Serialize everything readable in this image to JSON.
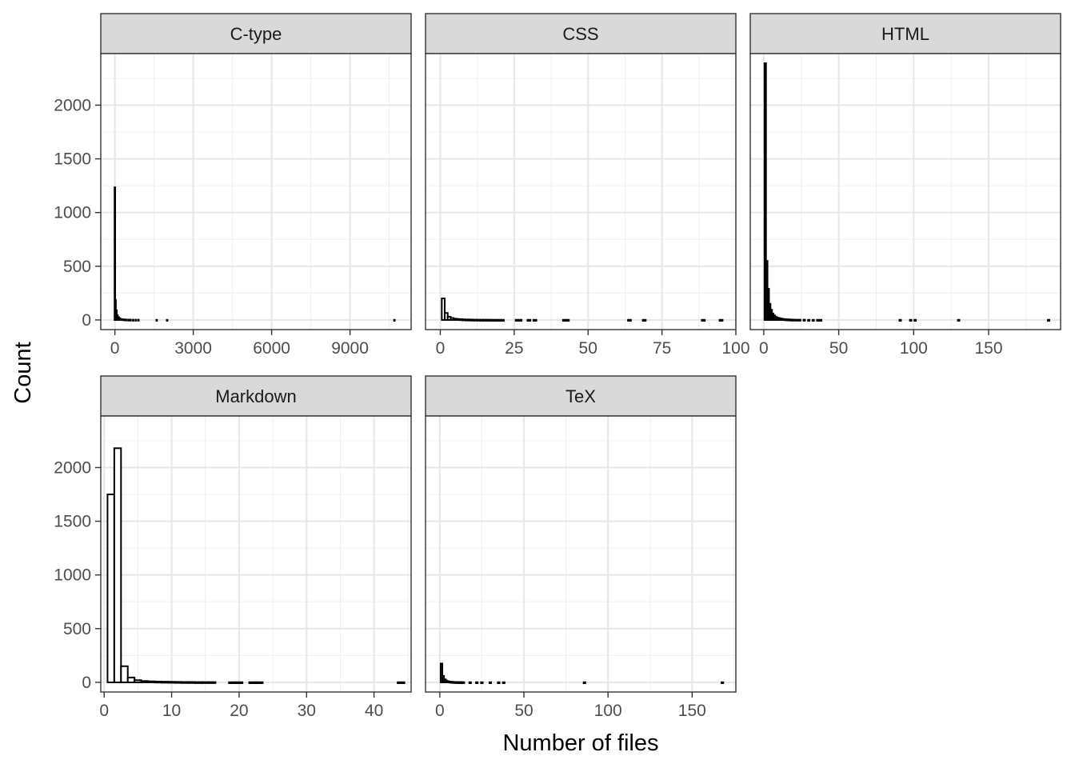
{
  "chart_data": {
    "type": "bar",
    "subtype": "faceted histogram",
    "xlabel": "Number of files",
    "ylabel": "Count",
    "facet_layout": {
      "columns": 3,
      "rows": 2
    },
    "scales": {
      "x": "free",
      "y": "shared"
    },
    "ylim": [
      -90,
      2480
    ],
    "y_ticks": [
      0,
      500,
      1000,
      1500,
      2000
    ],
    "grid": true,
    "legend": "none",
    "bar_fill": "#ffffff",
    "bar_outline": "#000000",
    "strip_fill": "#d9d9d9",
    "facets": [
      {
        "name": "C-type",
        "xlim": [
          -540,
          11340
        ],
        "x_ticks": [
          0,
          3000,
          6000,
          9000
        ],
        "x_tick_labels": [
          "0",
          "3000",
          "6000",
          "9000"
        ],
        "bins": [
          {
            "x": 0,
            "count": 1235
          },
          {
            "x": 25,
            "count": 185
          },
          {
            "x": 60,
            "count": 90
          },
          {
            "x": 100,
            "count": 45
          },
          {
            "x": 150,
            "count": 25
          },
          {
            "x": 200,
            "count": 15
          },
          {
            "x": 270,
            "count": 8
          },
          {
            "x": 350,
            "count": 5
          },
          {
            "x": 430,
            "count": 4
          },
          {
            "x": 520,
            "count": 3
          },
          {
            "x": 600,
            "count": 3
          },
          {
            "x": 700,
            "count": 2
          },
          {
            "x": 800,
            "count": 2
          },
          {
            "x": 900,
            "count": 2
          },
          {
            "x": 1600,
            "count": 1
          },
          {
            "x": 2000,
            "count": 1
          },
          {
            "x": 10700,
            "count": 1
          }
        ]
      },
      {
        "name": "CSS",
        "xlim": [
          -5,
          100
        ],
        "x_ticks": [
          0,
          25,
          50,
          75,
          100
        ],
        "x_tick_labels": [
          "0",
          "25",
          "50",
          "75",
          "100"
        ],
        "bins": [
          {
            "x": 1,
            "count": 200
          },
          {
            "x": 2,
            "count": 65
          },
          {
            "x": 3,
            "count": 30
          },
          {
            "x": 4,
            "count": 18
          },
          {
            "x": 5,
            "count": 12
          },
          {
            "x": 6,
            "count": 9
          },
          {
            "x": 7,
            "count": 7
          },
          {
            "x": 8,
            "count": 5
          },
          {
            "x": 9,
            "count": 4
          },
          {
            "x": 10,
            "count": 4
          },
          {
            "x": 11,
            "count": 3
          },
          {
            "x": 12,
            "count": 3
          },
          {
            "x": 13,
            "count": 2
          },
          {
            "x": 14,
            "count": 2
          },
          {
            "x": 15,
            "count": 2
          },
          {
            "x": 16,
            "count": 2
          },
          {
            "x": 17,
            "count": 1
          },
          {
            "x": 18,
            "count": 1
          },
          {
            "x": 19,
            "count": 1
          },
          {
            "x": 20,
            "count": 1
          },
          {
            "x": 21,
            "count": 1
          },
          {
            "x": 26,
            "count": 1
          },
          {
            "x": 27,
            "count": 1
          },
          {
            "x": 30,
            "count": 1
          },
          {
            "x": 32,
            "count": 1
          },
          {
            "x": 42,
            "count": 1
          },
          {
            "x": 43,
            "count": 1
          },
          {
            "x": 64,
            "count": 1
          },
          {
            "x": 69,
            "count": 1
          },
          {
            "x": 89,
            "count": 1
          },
          {
            "x": 95,
            "count": 1
          }
        ]
      },
      {
        "name": "HTML",
        "xlim": [
          -9,
          198
        ],
        "x_ticks": [
          0,
          50,
          100,
          150
        ],
        "x_tick_labels": [
          "0",
          "50",
          "100",
          "150"
        ],
        "bins": [
          {
            "x": 1,
            "count": 2390
          },
          {
            "x": 2,
            "count": 550
          },
          {
            "x": 3,
            "count": 290
          },
          {
            "x": 4,
            "count": 150
          },
          {
            "x": 5,
            "count": 95
          },
          {
            "x": 6,
            "count": 60
          },
          {
            "x": 7,
            "count": 42
          },
          {
            "x": 8,
            "count": 30
          },
          {
            "x": 9,
            "count": 22
          },
          {
            "x": 10,
            "count": 18
          },
          {
            "x": 11,
            "count": 14
          },
          {
            "x": 12,
            "count": 11
          },
          {
            "x": 13,
            "count": 9
          },
          {
            "x": 14,
            "count": 7
          },
          {
            "x": 15,
            "count": 6
          },
          {
            "x": 16,
            "count": 5
          },
          {
            "x": 17,
            "count": 4
          },
          {
            "x": 18,
            "count": 4
          },
          {
            "x": 19,
            "count": 3
          },
          {
            "x": 20,
            "count": 3
          },
          {
            "x": 22,
            "count": 2
          },
          {
            "x": 24,
            "count": 2
          },
          {
            "x": 27,
            "count": 2
          },
          {
            "x": 30,
            "count": 1
          },
          {
            "x": 33,
            "count": 1
          },
          {
            "x": 36,
            "count": 1
          },
          {
            "x": 38,
            "count": 1
          },
          {
            "x": 91,
            "count": 1
          },
          {
            "x": 98,
            "count": 1
          },
          {
            "x": 101,
            "count": 1
          },
          {
            "x": 130,
            "count": 1
          },
          {
            "x": 190,
            "count": 1
          }
        ]
      },
      {
        "name": "Markdown",
        "xlim": [
          -0.5,
          45.5
        ],
        "x_ticks": [
          0,
          10,
          20,
          30,
          40
        ],
        "x_tick_labels": [
          "0",
          "10",
          "20",
          "30",
          "40"
        ],
        "bins": [
          {
            "x": 1,
            "count": 1750
          },
          {
            "x": 2,
            "count": 2180
          },
          {
            "x": 3,
            "count": 150
          },
          {
            "x": 4,
            "count": 45
          },
          {
            "x": 5,
            "count": 20
          },
          {
            "x": 6,
            "count": 12
          },
          {
            "x": 7,
            "count": 9
          },
          {
            "x": 8,
            "count": 7
          },
          {
            "x": 9,
            "count": 6
          },
          {
            "x": 10,
            "count": 5
          },
          {
            "x": 11,
            "count": 4
          },
          {
            "x": 12,
            "count": 3
          },
          {
            "x": 13,
            "count": 3
          },
          {
            "x": 14,
            "count": 2
          },
          {
            "x": 15,
            "count": 2
          },
          {
            "x": 16,
            "count": 2
          },
          {
            "x": 19,
            "count": 1
          },
          {
            "x": 20,
            "count": 1
          },
          {
            "x": 22,
            "count": 1
          },
          {
            "x": 23,
            "count": 1
          },
          {
            "x": 44,
            "count": 1
          }
        ]
      },
      {
        "name": "TeX",
        "xlim": [
          -8.5,
          176
        ],
        "x_ticks": [
          0,
          50,
          100,
          150
        ],
        "x_tick_labels": [
          "0",
          "50",
          "100",
          "150"
        ],
        "bins": [
          {
            "x": 1,
            "count": 175
          },
          {
            "x": 2,
            "count": 60
          },
          {
            "x": 3,
            "count": 28
          },
          {
            "x": 4,
            "count": 16
          },
          {
            "x": 5,
            "count": 10
          },
          {
            "x": 6,
            "count": 7
          },
          {
            "x": 7,
            "count": 5
          },
          {
            "x": 8,
            "count": 4
          },
          {
            "x": 9,
            "count": 3
          },
          {
            "x": 10,
            "count": 3
          },
          {
            "x": 11,
            "count": 2
          },
          {
            "x": 12,
            "count": 2
          },
          {
            "x": 13,
            "count": 2
          },
          {
            "x": 14,
            "count": 1
          },
          {
            "x": 18,
            "count": 1
          },
          {
            "x": 22,
            "count": 1
          },
          {
            "x": 25,
            "count": 1
          },
          {
            "x": 30,
            "count": 1
          },
          {
            "x": 35,
            "count": 1
          },
          {
            "x": 38,
            "count": 1
          },
          {
            "x": 86,
            "count": 1
          },
          {
            "x": 168,
            "count": 1
          }
        ]
      }
    ]
  }
}
